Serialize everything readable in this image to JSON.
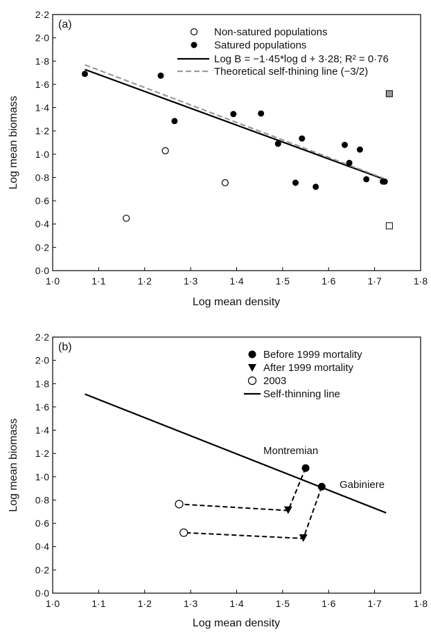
{
  "chart_data": [
    {
      "type": "scatter",
      "panel_label": "(a)",
      "xlabel": "Log mean density",
      "ylabel": "Log mean biomass",
      "xlim": [
        1.0,
        1.8
      ],
      "ylim": [
        0.0,
        2.2
      ],
      "xticks": [
        "1·0",
        "1·1",
        "1·2",
        "1·3",
        "1·4",
        "1·5",
        "1·6",
        "1·7",
        "1·8"
      ],
      "yticks": [
        "0·0",
        "0·2",
        "0·4",
        "0·6",
        "0·8",
        "1·0",
        "1·2",
        "1·4",
        "1·6",
        "1·8",
        "2·0",
        "2·2"
      ],
      "legend_position": "top-right",
      "legend": [
        {
          "label": "Non-satured populations",
          "marker": "open-circle"
        },
        {
          "label": "Satured populations",
          "marker": "filled-circle"
        },
        {
          "label": "Log B = −1·45*log d + 3·28; R² = 0·76",
          "marker": "solid-line"
        },
        {
          "label": "Theoretical self-thining line (−3/2)",
          "marker": "dashed-grey-line"
        }
      ],
      "series": [
        {
          "name": "Non-satured populations",
          "points": [
            [
              1.16,
              0.45
            ],
            [
              1.245,
              1.03
            ],
            [
              1.375,
              0.755
            ]
          ]
        },
        {
          "name": "Satured populations",
          "points": [
            [
              1.07,
              1.69
            ],
            [
              1.235,
              1.675
            ],
            [
              1.265,
              1.285
            ],
            [
              1.393,
              1.345
            ],
            [
              1.453,
              1.35
            ],
            [
              1.49,
              1.09
            ],
            [
              1.528,
              0.755
            ],
            [
              1.542,
              1.135
            ],
            [
              1.572,
              0.72
            ],
            [
              1.635,
              1.08
            ],
            [
              1.645,
              0.925
            ],
            [
              1.668,
              1.04
            ],
            [
              1.682,
              0.785
            ],
            [
              1.718,
              0.765
            ],
            [
              1.722,
              0.765
            ]
          ]
        },
        {
          "name": "grey-square",
          "points": [
            [
              1.732,
              1.52
            ]
          ]
        },
        {
          "name": "open-square",
          "points": [
            [
              1.732,
              0.385
            ]
          ]
        }
      ],
      "lines": [
        {
          "name": "regression",
          "style": "solid",
          "color": "#000000",
          "x": [
            1.07,
            1.72
          ],
          "y": [
            1.728,
            0.786
          ]
        },
        {
          "name": "theoretical",
          "style": "dashed",
          "color": "#999999",
          "x": [
            1.07,
            1.72
          ],
          "y": [
            1.768,
            0.793
          ]
        }
      ]
    },
    {
      "type": "scatter",
      "panel_label": "(b)",
      "xlabel": "Log mean density",
      "ylabel": "Log mean biomass",
      "xlim": [
        1.0,
        1.8
      ],
      "ylim": [
        0.0,
        2.2
      ],
      "xticks": [
        "1·0",
        "1·1",
        "1·2",
        "1·3",
        "1·4",
        "1·5",
        "1·6",
        "1·7",
        "1·8"
      ],
      "yticks": [
        "0·0",
        "0·2",
        "0·4",
        "0·6",
        "0·8",
        "1·0",
        "1·2",
        "1·4",
        "1·6",
        "1·8",
        "2·0",
        "2·2"
      ],
      "legend_position": "top-right",
      "legend": [
        {
          "label": "Before 1999 mortality",
          "marker": "filled-circle"
        },
        {
          "label": "After 1999 mortality",
          "marker": "filled-triangle-down"
        },
        {
          "label": "2003",
          "marker": "open-circle"
        },
        {
          "label": "Self-thinning line",
          "marker": "solid-line"
        }
      ],
      "self_thinning_line": {
        "x": [
          1.07,
          1.725
        ],
        "y": [
          1.71,
          0.69
        ]
      },
      "trajectories": [
        {
          "name": "Montremian",
          "before": [
            1.55,
            1.075
          ],
          "after": [
            1.512,
            0.71
          ],
          "y2003": [
            1.275,
            0.765
          ]
        },
        {
          "name": "Gabiniere",
          "before": [
            1.585,
            0.915
          ],
          "after": [
            1.545,
            0.47
          ],
          "y2003": [
            1.285,
            0.52
          ]
        }
      ],
      "annotations": [
        "Montremian",
        "Gabiniere"
      ]
    }
  ]
}
